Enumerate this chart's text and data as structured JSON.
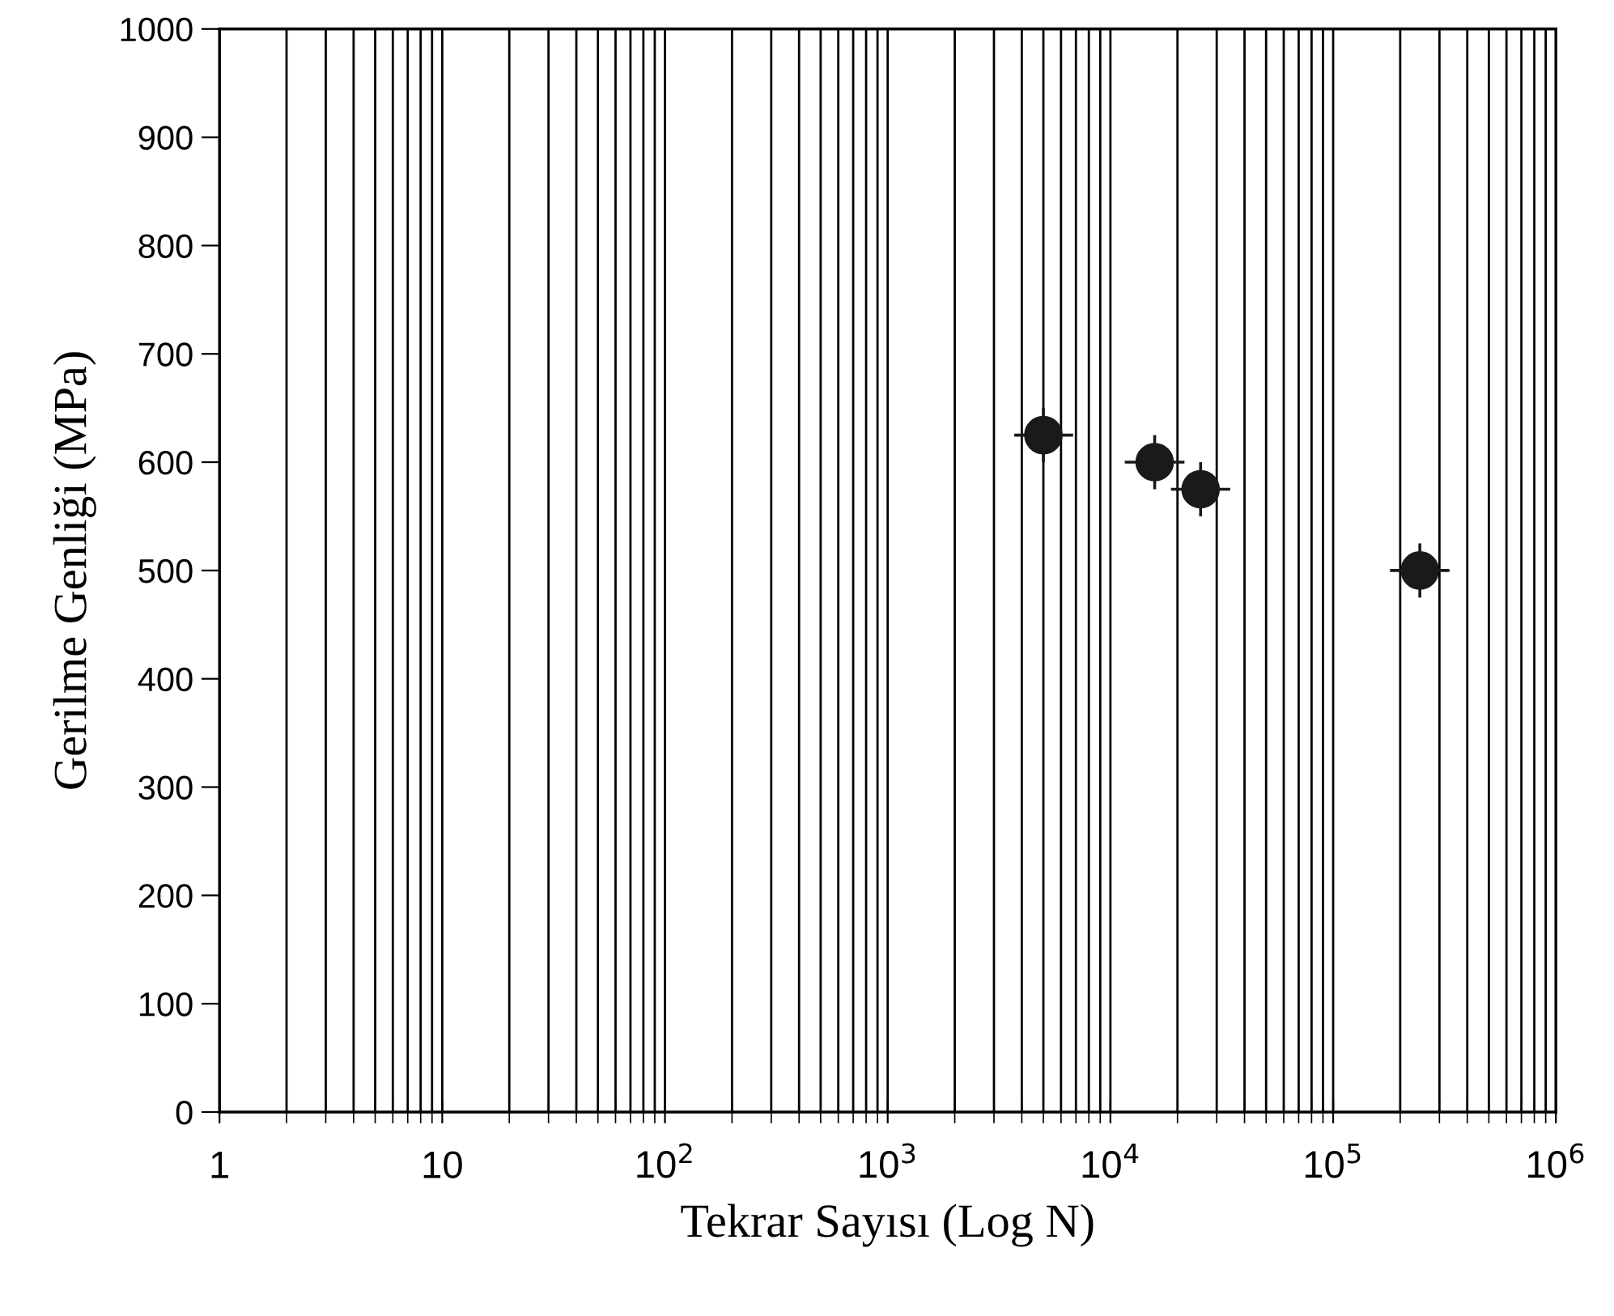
{
  "chart_data": {
    "type": "scatter",
    "xlabel": "Tekrar Sayısı (Log N)",
    "ylabel": "Gerilme Genliği (MPa)",
    "x": [
      5000,
      15800,
      25400,
      245000
    ],
    "values": [
      625,
      600,
      575,
      500
    ],
    "errors": [
      25,
      25,
      25,
      25
    ],
    "xerrors": [
      [
        3700,
        6800
      ],
      [
        11600,
        21500
      ],
      [
        18700,
        34500
      ],
      [
        180000,
        333000
      ]
    ],
    "color": "#1a1a1a",
    "marker": "circle",
    "log": "x",
    "grid": "x",
    "xlim": [
      1,
      1000000
    ],
    "xticks": [
      1,
      10,
      {
        "value": 100,
        "label": "10$^{2}$"
      },
      {
        "value": 1000,
        "label": "10$^{3}$"
      },
      {
        "value": 10000,
        "label": "10$^{4}$"
      },
      {
        "value": 100000,
        "label": "10$^{5}$"
      },
      {
        "value": 1000000,
        "label": "10$^{6}$"
      }
    ],
    "ylim": [
      0,
      1000
    ],
    "yticks": [
      0,
      100,
      200,
      300,
      400,
      500,
      600,
      700,
      800,
      900,
      1000
    ]
  }
}
